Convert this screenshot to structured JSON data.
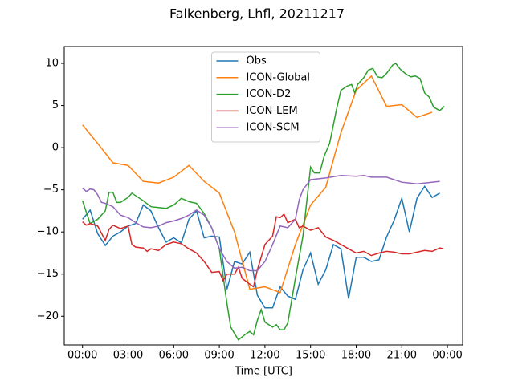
{
  "chart_data": {
    "type": "line",
    "title": "Falkenberg, Lhfl, 20211217",
    "xlabel": "Time [UTC]",
    "xlim": [
      -1.2,
      25.0
    ],
    "ylim": [
      -23.4,
      12
    ],
    "xticks": [
      {
        "value": 0,
        "label": "00:00"
      },
      {
        "value": 3,
        "label": "03:00"
      },
      {
        "value": 6,
        "label": "06:00"
      },
      {
        "value": 9,
        "label": "09:00"
      },
      {
        "value": 12,
        "label": "12:00"
      },
      {
        "value": 15,
        "label": "15:00"
      },
      {
        "value": 18,
        "label": "18:00"
      },
      {
        "value": 21,
        "label": "21:00"
      },
      {
        "value": 24,
        "label": "00:00"
      }
    ],
    "yticks": [
      {
        "value": -20,
        "label": "−20"
      },
      {
        "value": -15,
        "label": "−15"
      },
      {
        "value": -10,
        "label": "−10"
      },
      {
        "value": -5,
        "label": "−5"
      },
      0,
      5,
      10
    ],
    "legend": "upper center",
    "series": [
      {
        "name": "Obs",
        "color": "#1f77b4",
        "x": [
          0,
          0.5,
          1,
          1.5,
          2,
          2.5,
          3,
          3.5,
          4,
          4.5,
          5,
          5.5,
          6,
          6.5,
          7,
          7.5,
          8,
          8.5,
          9,
          9.5,
          10,
          10.5,
          11,
          11.5,
          12,
          12.5,
          13,
          13.5,
          14,
          14.5,
          15,
          15.5,
          16,
          16.5,
          17,
          17.5,
          18,
          18.5,
          19,
          19.5,
          20,
          20.5,
          21,
          21.5,
          22,
          22.5,
          23,
          23.5
        ],
        "values": [
          -8.5,
          -7.4,
          -10.2,
          -11.6,
          -10.5,
          -10,
          -9.3,
          -9,
          -6.8,
          -7.5,
          -9.5,
          -11.2,
          -10.7,
          -11.3,
          -8.5,
          -7.5,
          -10.7,
          -10.5,
          -10.6,
          -16.8,
          -13.5,
          -13.8,
          -12.4,
          -17.5,
          -19,
          -19,
          -16.5,
          -17.6,
          -18,
          -14.5,
          -12.5,
          -16.2,
          -14.5,
          -11.5,
          -12,
          -17.9,
          -13,
          -13,
          -13.5,
          -13.3,
          -10.6,
          -8.6,
          -6,
          -10,
          -6,
          -4.6,
          -5.9,
          -5.4
        ]
      },
      {
        "name": "ICON-Global",
        "color": "#ff7f0e",
        "x": [
          0,
          1,
          2,
          3,
          4,
          5,
          6,
          7,
          8,
          9,
          10,
          11,
          12,
          13,
          14,
          15,
          16,
          17,
          18,
          19,
          20,
          21,
          22,
          23
        ],
        "values": [
          2.7,
          0.5,
          -1.8,
          -2.1,
          -4,
          -4.2,
          -3.5,
          -2.1,
          -4,
          -5.4,
          -10,
          -16.8,
          -16.5,
          -17.2,
          -11.5,
          -6.8,
          -4.7,
          1.8,
          6.8,
          8.5,
          4.9,
          5.1,
          3.6,
          4.2
        ]
      },
      {
        "name": "ICON-D2",
        "color": "#2ca02c",
        "x": [
          0,
          0.5,
          1,
          1.5,
          1.75,
          2,
          2.25,
          2.5,
          3,
          3.25,
          4,
          4.5,
          5,
          5.5,
          6,
          6.5,
          7,
          7.5,
          8,
          8.5,
          9,
          9.5,
          9.75,
          10.25,
          10.75,
          11,
          11.25,
          11.5,
          11.75,
          12,
          12.5,
          12.75,
          13,
          13.25,
          13.5,
          14,
          14.5,
          15,
          15.25,
          15.6,
          15.9,
          16.25,
          16.7,
          17,
          17.4,
          17.7,
          17.9,
          18.1,
          18.5,
          18.8,
          19.1,
          19.4,
          19.7,
          20,
          20.4,
          20.6,
          20.9,
          21.3,
          21.6,
          21.9,
          22.2,
          22.5,
          22.8,
          23.1,
          23.5,
          23.8
        ],
        "values": [
          -6.3,
          -9,
          -8.5,
          -7.5,
          -5.3,
          -5.3,
          -6.5,
          -6.5,
          -5.9,
          -5.4,
          -6.3,
          -7,
          -7.1,
          -7.2,
          -6.8,
          -6,
          -6.4,
          -6.6,
          -7.8,
          -9.5,
          -12,
          -18.5,
          -21.3,
          -22.8,
          -22.1,
          -21.8,
          -22.2,
          -20.5,
          -19.2,
          -20.7,
          -21.3,
          -21,
          -21.6,
          -21.6,
          -20.8,
          -15.5,
          -10.5,
          -2.3,
          -3,
          -3,
          -1,
          0.5,
          4.5,
          6.8,
          7.3,
          7.5,
          6.5,
          7.5,
          8.3,
          9.2,
          9.4,
          8.4,
          8.3,
          8.8,
          9.8,
          10,
          9.3,
          8.7,
          8.4,
          8.5,
          8.2,
          6.5,
          6,
          4.8,
          4.4,
          4.9
        ]
      },
      {
        "name": "ICON-LEM",
        "color": "#d62728",
        "x": [
          0,
          0.25,
          0.5,
          1,
          1.5,
          1.75,
          2,
          2.5,
          3,
          3.25,
          3.5,
          4,
          4.25,
          4.5,
          5,
          5.5,
          6,
          6.5,
          7,
          7.5,
          8,
          8.5,
          9,
          9.25,
          9.5,
          10,
          10.25,
          10.5,
          11,
          11.25,
          11.5,
          12,
          12.5,
          12.75,
          13,
          13.25,
          13.5,
          14,
          14.25,
          14.5,
          15,
          15.5,
          16,
          16.5,
          17,
          17.5,
          18,
          18.5,
          19,
          19.5,
          20,
          20.5,
          21,
          21.5,
          22,
          22.5,
          23,
          23.5,
          23.75
        ],
        "values": [
          -8.8,
          -9.2,
          -9,
          -9.3,
          -11,
          -9.7,
          -9.2,
          -9.6,
          -9.3,
          -11.5,
          -11.8,
          -11.9,
          -12.3,
          -12,
          -12.2,
          -11.5,
          -11.2,
          -11.4,
          -12,
          -12.5,
          -13.5,
          -14.8,
          -14.7,
          -15.8,
          -15,
          -15,
          -14.2,
          -15.5,
          -16.2,
          -16.5,
          -14.5,
          -11.5,
          -10.5,
          -8.2,
          -8.3,
          -7.9,
          -8.9,
          -8.5,
          -9.5,
          -9.3,
          -9.8,
          -9.5,
          -10.6,
          -11,
          -11.5,
          -12,
          -12.5,
          -12.3,
          -12.8,
          -12.5,
          -12.3,
          -12.4,
          -12.6,
          -12.6,
          -12.4,
          -12.2,
          -12.3,
          -11.9,
          -12
        ]
      },
      {
        "name": "ICON-SCM",
        "color": "#9467bd",
        "x": [
          0,
          0.25,
          0.5,
          0.75,
          1,
          1.25,
          1.5,
          2,
          2.5,
          3,
          3.5,
          4,
          4.5,
          5,
          5.5,
          6,
          6.5,
          7,
          7.5,
          8,
          8.5,
          9,
          9.5,
          10,
          10.5,
          11,
          11.5,
          12,
          12.5,
          13,
          13.5,
          14,
          14.25,
          14.5,
          15,
          16,
          17,
          18,
          18.5,
          19,
          20,
          21,
          22,
          22.5,
          23.5
        ],
        "values": [
          -4.8,
          -5.2,
          -4.9,
          -5,
          -5.6,
          -6.5,
          -6.6,
          -7,
          -8,
          -8.3,
          -8.9,
          -9.4,
          -9.5,
          -9.3,
          -8.9,
          -8.7,
          -8.4,
          -8,
          -7.4,
          -8,
          -9.5,
          -12,
          -13.5,
          -14.3,
          -14.2,
          -14.6,
          -14.6,
          -13.5,
          -11.5,
          -9.3,
          -9.5,
          -8.5,
          -6.2,
          -5,
          -3.8,
          -3.6,
          -3.3,
          -3.4,
          -3.3,
          -3.5,
          -3.5,
          -4.1,
          -4.3,
          -4.2,
          -4
        ]
      }
    ]
  }
}
